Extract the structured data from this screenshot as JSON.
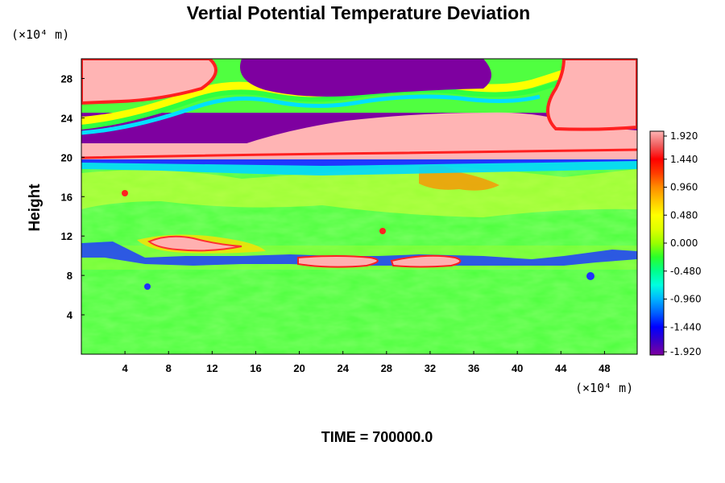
{
  "chart_data": {
    "type": "heatmap",
    "title": "Vertial Potential Temperature Deviation",
    "ylabel": "Height",
    "y_unit_label": "(×10⁴ m)",
    "x_unit_label": "(×10⁴ m)",
    "footer": "TIME = 700000.0",
    "x_ticks": [
      "4",
      "8",
      "12",
      "16",
      "20",
      "24",
      "28",
      "32",
      "36",
      "40",
      "44",
      "48"
    ],
    "y_ticks": [
      "4",
      "8",
      "12",
      "16",
      "20",
      "24",
      "28"
    ],
    "xlim": [
      0,
      51
    ],
    "ylim": [
      0,
      30
    ],
    "colorbar": {
      "labels": [
        "1.920",
        "1.440",
        "0.960",
        "0.480",
        "0.000",
        "-0.480",
        "-0.960",
        "-1.440",
        "-1.920"
      ],
      "range": [
        -1.92,
        1.92
      ],
      "colors": [
        "#7e00a0",
        "#3a00c8",
        "#0000ff",
        "#0060ff",
        "#00b4ff",
        "#00ffe0",
        "#00ff8c",
        "#2aff2a",
        "#9aff00",
        "#dfff00",
        "#ffff00",
        "#ffc800",
        "#ff8c00",
        "#ff3c00",
        "#ff0000",
        "#f06060",
        "#ffb4b4"
      ]
    },
    "field_description_levels": [
      {
        "y_from": 0,
        "y_to": 8.5,
        "value": 0.0
      },
      {
        "y_from": 8.5,
        "y_to": 11,
        "value": -0.6
      },
      {
        "y_from": 9.3,
        "y_to": 9.9,
        "value": 1.92
      },
      {
        "y_from": 11,
        "y_to": 19.8,
        "value": 0.2
      },
      {
        "y_from": 19.8,
        "y_to": 21,
        "value": -1.44
      },
      {
        "y_from": 20,
        "y_to": 22,
        "value": 1.92
      },
      {
        "y_from": 22,
        "y_to": 25,
        "value": -1.92
      },
      {
        "y_from": 25,
        "y_to": 30,
        "value": 1.92
      }
    ]
  }
}
